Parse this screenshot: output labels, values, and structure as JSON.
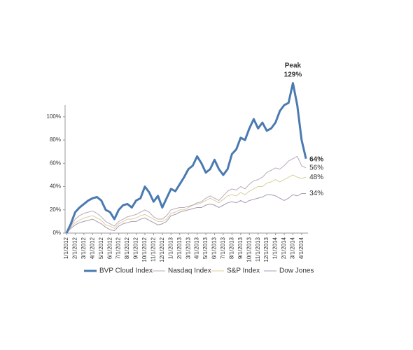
{
  "chart_data": {
    "type": "line",
    "categories": [
      "1/1/2012",
      null,
      "2/1/2012",
      null,
      "3/1/2012",
      null,
      "4/1/2012",
      null,
      "5/1/2012",
      null,
      "6/1/2012",
      null,
      "7/1/2012",
      null,
      "8/1/2012",
      null,
      "9/1/2012",
      null,
      "10/1/2012",
      null,
      "11/1/2012",
      null,
      "12/1/2012",
      null,
      "1/1/2013",
      null,
      "2/1/2013",
      null,
      "3/1/2013",
      null,
      "4/1/2013",
      null,
      "5/1/2013",
      null,
      "6/1/2013",
      null,
      "7/1/2013",
      null,
      "8/1/2013",
      null,
      "9/1/2013",
      null,
      "10/1/2013",
      null,
      "11/1/2013",
      null,
      "12/1/2013",
      null,
      "1/1/2014",
      null,
      "2/1/2014",
      null,
      "3/1/2014",
      null,
      "4/1/2014",
      null
    ],
    "series": [
      {
        "name": "BVP Cloud Index",
        "color": "#4a7ab0",
        "width": 3,
        "values": [
          0,
          8,
          18,
          22,
          25,
          28,
          30,
          31,
          28,
          20,
          18,
          12,
          20,
          24,
          25,
          22,
          28,
          30,
          40,
          35,
          27,
          32,
          22,
          30,
          38,
          36,
          42,
          48,
          55,
          58,
          66,
          60,
          52,
          55,
          63,
          55,
          50,
          55,
          68,
          72,
          82,
          80,
          90,
          98,
          90,
          95,
          88,
          90,
          95,
          105,
          110,
          112,
          129,
          110,
          80,
          64
        ],
        "value_labels": [
          null,
          null,
          null,
          null,
          null,
          null,
          null,
          null,
          null,
          null,
          null,
          null,
          null,
          null,
          null,
          null,
          null,
          null,
          null,
          null,
          null,
          null,
          null,
          null,
          null,
          null,
          null,
          null,
          null,
          null,
          null,
          null,
          null,
          null,
          null,
          null,
          null,
          null,
          null,
          null,
          null,
          null,
          null,
          null,
          null,
          null,
          null,
          null,
          null,
          null,
          null,
          null,
          "129%",
          null,
          null,
          "64%"
        ]
      },
      {
        "name": "Nasdaq Index",
        "color": "#bca8bc",
        "width": 1,
        "values": [
          0,
          6,
          12,
          15,
          17,
          18,
          19,
          17,
          14,
          10,
          8,
          6,
          10,
          12,
          14,
          15,
          16,
          18,
          20,
          18,
          14,
          12,
          12,
          15,
          20,
          21,
          22,
          22,
          23,
          24,
          26,
          27,
          30,
          32,
          30,
          28,
          32,
          36,
          38,
          37,
          40,
          38,
          42,
          45,
          46,
          48,
          52,
          54,
          56,
          55,
          58,
          62,
          64,
          66,
          58,
          56
        ],
        "value_labels": [
          null,
          null,
          null,
          null,
          null,
          null,
          null,
          null,
          null,
          null,
          null,
          null,
          null,
          null,
          null,
          null,
          null,
          null,
          null,
          null,
          null,
          null,
          null,
          null,
          null,
          null,
          null,
          null,
          null,
          null,
          null,
          null,
          null,
          null,
          null,
          null,
          null,
          null,
          null,
          null,
          null,
          null,
          null,
          null,
          null,
          null,
          null,
          null,
          null,
          null,
          null,
          null,
          null,
          null,
          null,
          "56%"
        ]
      },
      {
        "name": "S&P Index",
        "color": "#d9cf9c",
        "width": 1,
        "values": [
          0,
          5,
          9,
          11,
          13,
          14,
          15,
          13,
          11,
          7,
          6,
          4,
          8,
          10,
          12,
          12,
          13,
          15,
          16,
          14,
          12,
          10,
          10,
          12,
          17,
          18,
          20,
          20,
          22,
          24,
          25,
          26,
          28,
          30,
          28,
          26,
          29,
          32,
          33,
          32,
          35,
          33,
          36,
          38,
          40,
          40,
          43,
          44,
          46,
          44,
          46,
          48,
          50,
          48,
          47,
          48
        ],
        "value_labels": [
          null,
          null,
          null,
          null,
          null,
          null,
          null,
          null,
          null,
          null,
          null,
          null,
          null,
          null,
          null,
          null,
          null,
          null,
          null,
          null,
          null,
          null,
          null,
          null,
          null,
          null,
          null,
          null,
          null,
          null,
          null,
          null,
          null,
          null,
          null,
          null,
          null,
          null,
          null,
          null,
          null,
          null,
          null,
          null,
          null,
          null,
          null,
          null,
          null,
          null,
          null,
          null,
          null,
          null,
          null,
          "48%"
        ]
      },
      {
        "name": "Dow Jones",
        "color": "#a898b4",
        "width": 1,
        "values": [
          0,
          4,
          7,
          9,
          10,
          11,
          12,
          10,
          8,
          5,
          3,
          2,
          6,
          8,
          9,
          10,
          10,
          12,
          13,
          11,
          9,
          7,
          8,
          10,
          15,
          16,
          18,
          19,
          20,
          21,
          22,
          22,
          24,
          25,
          24,
          22,
          24,
          26,
          27,
          26,
          28,
          26,
          28,
          29,
          30,
          31,
          33,
          33,
          32,
          30,
          28,
          30,
          33,
          32,
          34,
          34
        ],
        "value_labels": [
          null,
          null,
          null,
          null,
          null,
          null,
          null,
          null,
          null,
          null,
          null,
          null,
          null,
          null,
          null,
          null,
          null,
          null,
          null,
          null,
          null,
          null,
          null,
          null,
          null,
          null,
          null,
          null,
          null,
          null,
          null,
          null,
          null,
          null,
          null,
          null,
          null,
          null,
          null,
          null,
          null,
          null,
          null,
          null,
          null,
          null,
          null,
          null,
          null,
          null,
          null,
          null,
          null,
          null,
          null,
          "34%"
        ]
      }
    ],
    "annotation": "Peak",
    "ylim": [
      0,
      130
    ],
    "yticks": [
      {
        "value": 0,
        "label": "0%"
      },
      {
        "value": 20,
        "label": "20%"
      },
      {
        "value": 40,
        "label": "40%"
      },
      {
        "value": 60,
        "label": "60%"
      },
      {
        "value": 80,
        "label": "80%"
      },
      {
        "value": 100,
        "label": "100%"
      }
    ],
    "grid": false,
    "legend": "bottom"
  }
}
